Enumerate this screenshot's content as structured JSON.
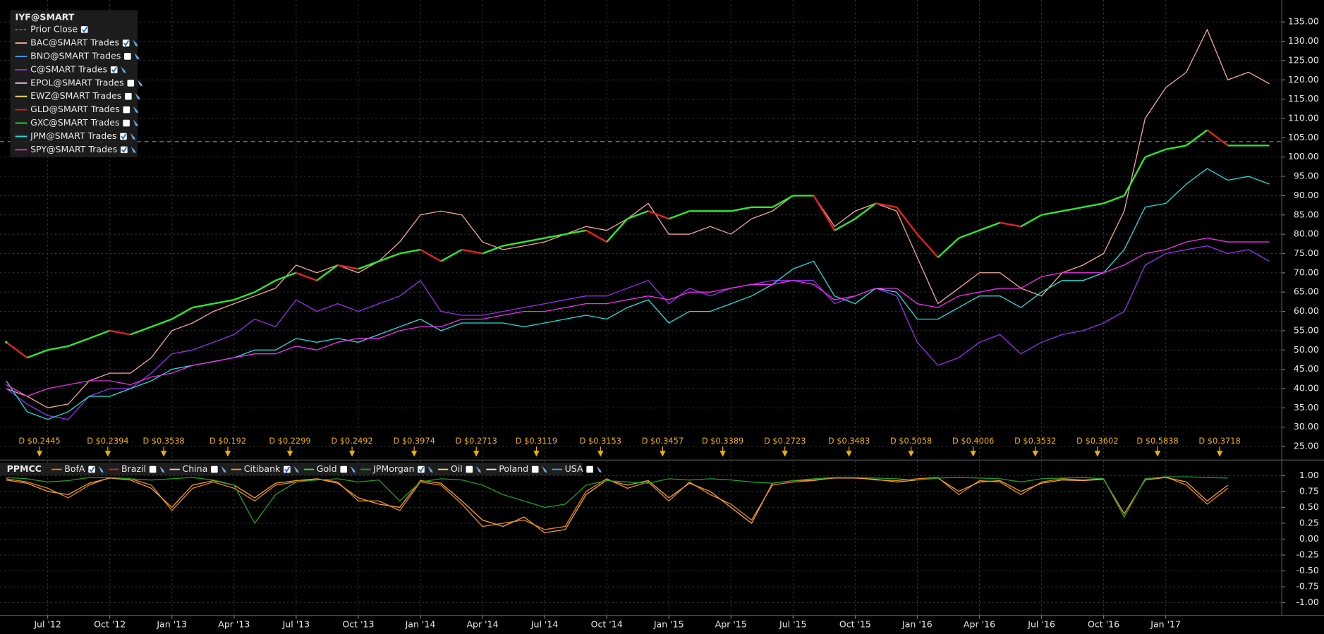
{
  "chart_data": [
    {
      "type": "line",
      "title": "IYF@SMART",
      "prior_close_label": "Prior Close",
      "prior_close": 104,
      "up_color": "#2ee82e",
      "down_color": "#e82020",
      "x": [
        2012.333,
        2012.417,
        2012.5,
        2012.583,
        2012.667,
        2012.75,
        2012.833,
        2012.917,
        2013,
        2013.083,
        2013.167,
        2013.25,
        2013.333,
        2013.417,
        2013.5,
        2013.583,
        2013.667,
        2013.75,
        2013.833,
        2013.917,
        2014,
        2014.083,
        2014.167,
        2014.25,
        2014.333,
        2014.417,
        2014.5,
        2014.583,
        2014.667,
        2014.75,
        2014.833,
        2014.917,
        2015,
        2015.083,
        2015.167,
        2015.25,
        2015.333,
        2015.417,
        2015.5,
        2015.583,
        2015.667,
        2015.75,
        2015.833,
        2015.917,
        2016,
        2016.083,
        2016.167,
        2016.25,
        2016.333,
        2016.417,
        2016.5,
        2016.583,
        2016.667,
        2016.75,
        2016.833,
        2016.917,
        2017,
        2017.083,
        2017.167,
        2017.25,
        2017.333,
        2017.417
      ],
      "values": [
        52,
        48,
        50,
        51,
        53,
        55,
        54,
        56,
        58,
        61,
        62,
        63,
        65,
        68,
        70,
        68,
        72,
        71,
        73,
        75,
        76,
        73,
        76,
        75,
        77,
        78,
        79,
        80,
        81,
        78,
        84,
        86,
        84,
        86,
        86,
        86,
        87,
        87,
        90,
        90,
        81,
        84,
        88,
        87,
        80,
        74,
        79,
        81,
        83,
        82,
        85,
        86,
        87,
        88,
        90,
        100,
        102,
        103,
        107,
        103,
        103,
        103
      ],
      "series": [
        {
          "name": "BAC@SMART Trades",
          "color": "#f2a596",
          "visible": true,
          "values": [
            40,
            38,
            35,
            36,
            42,
            44,
            44,
            48,
            55,
            57,
            60,
            62,
            64,
            66,
            72,
            70,
            72,
            70,
            73,
            78,
            85,
            86,
            85,
            78,
            76,
            77,
            78,
            80,
            82,
            81,
            84,
            88,
            80,
            80,
            82,
            80,
            84,
            86,
            90,
            90,
            82,
            86,
            88,
            86,
            74,
            62,
            66,
            70,
            70,
            66,
            64,
            70,
            72,
            75,
            86,
            110,
            118,
            122,
            133,
            120,
            122,
            119
          ]
        },
        {
          "name": "BNO@SMART Trades",
          "color": "#4aa3f0",
          "visible": false
        },
        {
          "name": "C@SMART Trades",
          "color": "#9a2cf0",
          "visible": true,
          "values": [
            40,
            36,
            33,
            32,
            38,
            40,
            40,
            44,
            49,
            50,
            52,
            54,
            58,
            56,
            63,
            60,
            62,
            60,
            62,
            64,
            68,
            60,
            59,
            59,
            60,
            61,
            62,
            63,
            64,
            64,
            66,
            68,
            62,
            66,
            64,
            66,
            67,
            68,
            68,
            68,
            62,
            64,
            66,
            64,
            52,
            46,
            48,
            52,
            54,
            49,
            52,
            54,
            55,
            57,
            60,
            72,
            75,
            76,
            77,
            75,
            76,
            73
          ]
        },
        {
          "name": "EPOL@SMART Trades",
          "color": "#e6c8f8",
          "visible": false
        },
        {
          "name": "EWZ@SMART Trades",
          "color": "#f0e060",
          "visible": false
        },
        {
          "name": "GLD@SMART Trades",
          "color": "#e02020",
          "visible": false
        },
        {
          "name": "GXC@SMART Trades",
          "color": "#30e030",
          "visible": false
        },
        {
          "name": "JPM@SMART Trades",
          "color": "#20dede",
          "visible": true,
          "values": [
            42,
            34,
            32,
            34,
            38,
            38,
            40,
            42,
            45,
            46,
            47,
            48,
            50,
            50,
            53,
            52,
            53,
            52,
            54,
            56,
            58,
            55,
            57,
            57,
            57,
            56,
            57,
            58,
            59,
            58,
            61,
            63,
            57,
            60,
            60,
            62,
            64,
            67,
            71,
            73,
            64,
            62,
            66,
            65,
            58,
            58,
            61,
            64,
            64,
            61,
            65,
            68,
            68,
            70,
            76,
            87,
            88,
            93,
            97,
            94,
            95,
            93
          ]
        },
        {
          "name": "SPY@SMART Trades",
          "color": "#f030f0",
          "visible": true,
          "values": [
            41,
            38,
            40,
            41,
            42,
            42,
            41,
            43,
            44,
            46,
            47,
            48,
            49,
            49,
            51,
            50,
            52,
            53,
            53,
            55,
            56,
            56,
            58,
            58,
            59,
            60,
            60,
            61,
            62,
            62,
            63,
            64,
            63,
            65,
            65,
            66,
            67,
            67,
            68,
            67,
            63,
            64,
            66,
            66,
            62,
            61,
            64,
            65,
            66,
            66,
            69,
            70,
            70,
            70,
            72,
            75,
            76,
            78,
            79,
            78,
            78,
            78
          ]
        }
      ],
      "xlim": [
        2012.308,
        2017.467
      ],
      "ylim": [
        21.9,
        140.7
      ],
      "grid": true,
      "xticks": [
        {
          "value": 2012.5,
          "label": "Jul '12"
        },
        {
          "value": 2012.75,
          "label": "Oct '12"
        },
        {
          "value": 2013,
          "label": "Jan '13"
        },
        {
          "value": 2013.25,
          "label": "Apr '13"
        },
        {
          "value": 2013.5,
          "label": "Jul '13"
        },
        {
          "value": 2013.75,
          "label": "Oct '13"
        },
        {
          "value": 2014,
          "label": "Jan '14"
        },
        {
          "value": 2014.25,
          "label": "Apr '14"
        },
        {
          "value": 2014.5,
          "label": "Jul '14"
        },
        {
          "value": 2014.75,
          "label": "Oct '14"
        },
        {
          "value": 2015,
          "label": "Jan '15"
        },
        {
          "value": 2015.25,
          "label": "Apr '15"
        },
        {
          "value": 2015.5,
          "label": "Jul '15"
        },
        {
          "value": 2015.75,
          "label": "Oct '15"
        },
        {
          "value": 2016,
          "label": "Jan '16"
        },
        {
          "value": 2016.25,
          "label": "Apr '16"
        },
        {
          "value": 2016.5,
          "label": "Jul '16"
        },
        {
          "value": 2016.75,
          "label": "Oct '16"
        },
        {
          "value": 2017,
          "label": "Jan '17"
        }
      ],
      "yticks": [
        {
          "value": 25,
          "label": "25.00"
        },
        {
          "value": 30,
          "label": "30.00"
        },
        {
          "value": 35,
          "label": "35.00"
        },
        {
          "value": 40,
          "label": "40.00"
        },
        {
          "value": 45,
          "label": "45.00"
        },
        {
          "value": 50,
          "label": "50.00"
        },
        {
          "value": 55,
          "label": "55.00"
        },
        {
          "value": 60,
          "label": "60.00"
        },
        {
          "value": 65,
          "label": "65.00"
        },
        {
          "value": 70,
          "label": "70.00"
        },
        {
          "value": 75,
          "label": "75.00"
        },
        {
          "value": 80,
          "label": "80.00"
        },
        {
          "value": 85,
          "label": "85.00"
        },
        {
          "value": 90,
          "label": "90.00"
        },
        {
          "value": 95,
          "label": "95.00"
        },
        {
          "value": 100,
          "label": "100.00"
        },
        {
          "value": 105,
          "label": "105.00"
        },
        {
          "value": 110,
          "label": "110.00"
        },
        {
          "value": 115,
          "label": "115.00"
        },
        {
          "value": 120,
          "label": "120.00"
        },
        {
          "value": 125,
          "label": "125.00"
        },
        {
          "value": 130,
          "label": "130.00"
        },
        {
          "value": 135,
          "label": "135.00"
        }
      ],
      "events_color": "#f0b000",
      "events": [
        {
          "x": 2012.467,
          "label": "D $0.2445"
        },
        {
          "x": 2012.742,
          "label": "D $0.2394"
        },
        {
          "x": 2012.967,
          "label": "D $0.3538"
        },
        {
          "x": 2013.225,
          "label": "D $0.192"
        },
        {
          "x": 2013.475,
          "label": "D $0.2299"
        },
        {
          "x": 2013.725,
          "label": "D $0.2492"
        },
        {
          "x": 2013.975,
          "label": "D $0.3974"
        },
        {
          "x": 2014.225,
          "label": "D $0.2713"
        },
        {
          "x": 2014.467,
          "label": "D $0.3119"
        },
        {
          "x": 2014.725,
          "label": "D $0.3153"
        },
        {
          "x": 2014.975,
          "label": "D $0.3457"
        },
        {
          "x": 2015.217,
          "label": "D $0.3389"
        },
        {
          "x": 2015.467,
          "label": "D $0.2723"
        },
        {
          "x": 2015.725,
          "label": "D $0.3483"
        },
        {
          "x": 2015.975,
          "label": "D $0.5058"
        },
        {
          "x": 2016.225,
          "label": "D $0.4006"
        },
        {
          "x": 2016.475,
          "label": "D $0.3532"
        },
        {
          "x": 2016.725,
          "label": "D $0.3602"
        },
        {
          "x": 2016.967,
          "label": "D $0.5838"
        },
        {
          "x": 2017.217,
          "label": "D $0.3718"
        }
      ]
    },
    {
      "type": "line",
      "title": "PPMCC",
      "x": [
        2012.333,
        2012.417,
        2012.5,
        2012.583,
        2012.667,
        2012.75,
        2012.833,
        2012.917,
        2013,
        2013.083,
        2013.167,
        2013.25,
        2013.333,
        2013.417,
        2013.5,
        2013.583,
        2013.667,
        2013.75,
        2013.833,
        2013.917,
        2014,
        2014.083,
        2014.167,
        2014.25,
        2014.333,
        2014.417,
        2014.5,
        2014.583,
        2014.667,
        2014.75,
        2014.833,
        2014.917,
        2015,
        2015.083,
        2015.167,
        2015.25,
        2015.333,
        2015.417,
        2015.5,
        2015.583,
        2015.667,
        2015.75,
        2015.833,
        2015.917,
        2016,
        2016.083,
        2016.167,
        2016.25,
        2016.333,
        2016.417,
        2016.5,
        2016.583,
        2016.667,
        2016.75,
        2016.833,
        2016.917,
        2017,
        2017.083,
        2017.167,
        2017.25
      ],
      "series": [
        {
          "name": "BofA",
          "color": "#e8841a",
          "visible": true,
          "values": [
            0.95,
            0.9,
            0.8,
            0.65,
            0.85,
            0.97,
            0.95,
            0.85,
            0.45,
            0.8,
            0.9,
            0.8,
            0.6,
            0.85,
            0.9,
            0.95,
            0.9,
            0.6,
            0.6,
            0.45,
            0.9,
            0.85,
            0.55,
            0.2,
            0.25,
            0.3,
            0.15,
            0.2,
            0.75,
            0.95,
            0.8,
            0.9,
            0.6,
            0.9,
            0.7,
            0.55,
            0.3,
            0.85,
            0.9,
            0.92,
            0.97,
            0.97,
            0.93,
            0.92,
            0.95,
            0.97,
            0.7,
            0.92,
            0.9,
            0.7,
            0.9,
            0.95,
            0.93,
            0.95,
            0.35,
            0.95,
            0.98,
            0.85,
            0.55,
            0.8
          ]
        },
        {
          "name": "Brazil",
          "color": "#e02020",
          "visible": false
        },
        {
          "name": "China",
          "color": "#e6c8f8",
          "visible": false
        },
        {
          "name": "Citibank",
          "color": "#f0a030",
          "visible": true,
          "values": [
            0.93,
            0.88,
            0.75,
            0.7,
            0.88,
            0.96,
            0.93,
            0.8,
            0.5,
            0.85,
            0.92,
            0.85,
            0.65,
            0.88,
            0.92,
            0.95,
            0.88,
            0.65,
            0.55,
            0.5,
            0.92,
            0.88,
            0.6,
            0.3,
            0.2,
            0.35,
            0.1,
            0.15,
            0.7,
            0.93,
            0.85,
            0.92,
            0.65,
            0.88,
            0.75,
            0.5,
            0.25,
            0.88,
            0.92,
            0.93,
            0.96,
            0.96,
            0.94,
            0.9,
            0.93,
            0.96,
            0.75,
            0.9,
            0.92,
            0.75,
            0.88,
            0.93,
            0.92,
            0.94,
            0.4,
            0.93,
            0.97,
            0.9,
            0.6,
            0.85
          ]
        },
        {
          "name": "Gold",
          "color": "#30e030",
          "visible": false
        },
        {
          "name": "JPMorgan",
          "color": "#1ea01e",
          "visible": true,
          "values": [
            0.97,
            0.95,
            0.9,
            0.92,
            0.97,
            0.97,
            0.95,
            0.93,
            0.95,
            0.97,
            0.93,
            0.85,
            0.25,
            0.7,
            0.9,
            0.93,
            0.95,
            0.9,
            0.93,
            0.6,
            0.9,
            0.95,
            0.93,
            0.85,
            0.7,
            0.6,
            0.5,
            0.55,
            0.85,
            0.92,
            0.9,
            0.88,
            0.95,
            0.93,
            0.95,
            0.93,
            0.9,
            0.88,
            0.92,
            0.95,
            0.97,
            0.97,
            0.96,
            0.95,
            0.93,
            0.96,
            0.97,
            0.96,
            0.95,
            0.9,
            0.95,
            0.96,
            0.97,
            0.95,
            0.35,
            0.95,
            0.98,
            0.98,
            0.97,
            0.96
          ]
        },
        {
          "name": "Oil",
          "color": "#f0e060",
          "visible": false
        },
        {
          "name": "Poland",
          "color": "#f0f0f0",
          "visible": false
        },
        {
          "name": "USA",
          "color": "#30b0f0",
          "visible": false
        }
      ],
      "xlim": [
        2012.308,
        2017.467
      ],
      "ylim": [
        -1.2,
        1.23
      ],
      "grid": true,
      "yticks": [
        {
          "value": 1,
          "label": "1.00"
        },
        {
          "value": 0.75,
          "label": "0.75"
        },
        {
          "value": 0.5,
          "label": "0.50"
        },
        {
          "value": 0.25,
          "label": "0.25"
        },
        {
          "value": 0,
          "label": "0.00"
        },
        {
          "value": -0.25,
          "label": "-0.25"
        },
        {
          "value": -0.5,
          "label": "-0.50"
        },
        {
          "value": -0.75,
          "label": "-0.75"
        },
        {
          "value": -1,
          "label": "-1.00"
        }
      ]
    }
  ]
}
